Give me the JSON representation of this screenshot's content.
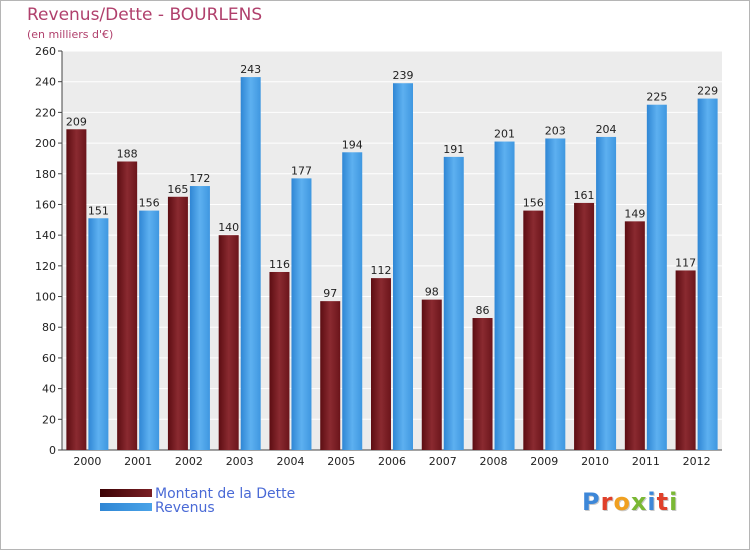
{
  "chart_data": {
    "type": "bar",
    "title": "Revenus/Dette - BOURLENS",
    "subtitle": "(en milliers d'€)",
    "categories": [
      "2000",
      "2001",
      "2002",
      "2003",
      "2004",
      "2005",
      "2006",
      "2007",
      "2008",
      "2009",
      "2010",
      "2011",
      "2012"
    ],
    "series": [
      {
        "name": "Montant de la Dette",
        "color": "#7a1f24",
        "values": [
          209,
          188,
          165,
          140,
          116,
          97,
          112,
          98,
          86,
          156,
          161,
          149,
          117
        ]
      },
      {
        "name": "Revenus",
        "color": "#4aa3e8",
        "values": [
          151,
          156,
          172,
          243,
          177,
          194,
          239,
          191,
          201,
          203,
          204,
          225,
          229
        ]
      }
    ],
    "ylim": [
      0,
      260
    ],
    "yticks": [
      0,
      20,
      40,
      60,
      80,
      100,
      120,
      140,
      160,
      180,
      200,
      220,
      240,
      260
    ],
    "grid": true,
    "legend": "bottom-left"
  },
  "logo": {
    "text": "Proxiti",
    "letter_colors": [
      "#3d87d8",
      "#e0402a",
      "#f0a020",
      "#7ab834",
      "#3d87d8",
      "#e0402a",
      "#7ab834"
    ]
  }
}
